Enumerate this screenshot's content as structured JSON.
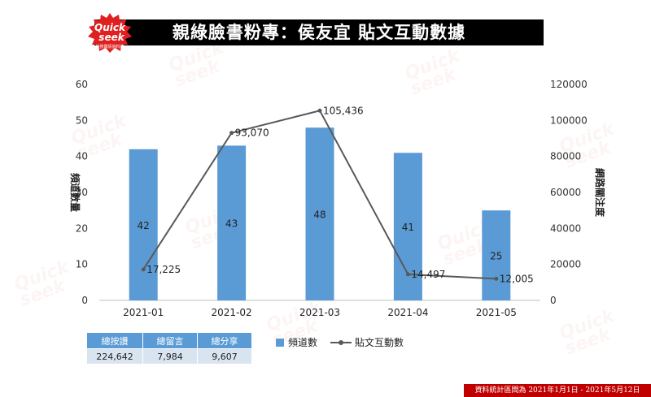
{
  "logo": {
    "line1": "Quick",
    "line2": "seek",
    "tagline": "快搜輿情資料庫"
  },
  "title": "親綠臉書粉專：侯友宜 貼文互動數據",
  "stats_table": {
    "headers": [
      "總按讚",
      "總留言",
      "總分享"
    ],
    "values": [
      "224,642",
      "7,984",
      "9,607"
    ]
  },
  "legend": {
    "bar": "頻道數",
    "line": "貼文互動數"
  },
  "footer": "資料統計區間為 2021年1月1日 - 2021年5月12日",
  "colors": {
    "bar": "#5b9bd5",
    "line": "#595959",
    "title_bg": "#000000",
    "footer_bg": "#c00000",
    "logo": "#e02020"
  },
  "chart_data": {
    "type": "bar",
    "categories": [
      "2021-01",
      "2021-02",
      "2021-03",
      "2021-04",
      "2021-05"
    ],
    "series": [
      {
        "name": "頻道數",
        "type": "bar",
        "axis": "left",
        "values": [
          42,
          43,
          48,
          41,
          25
        ],
        "labels": [
          "42",
          "43",
          "48",
          "41",
          "25"
        ]
      },
      {
        "name": "貼文互動數",
        "type": "line",
        "axis": "right",
        "values": [
          17225,
          93070,
          105436,
          14497,
          12005
        ],
        "labels": [
          "17,225",
          "93,070",
          "105,436",
          "14,497",
          "12,005"
        ]
      }
    ],
    "ylabel": "頻道數量",
    "y2label": "網路關注度",
    "ylim": [
      0,
      60
    ],
    "y2lim": [
      0,
      120000
    ],
    "yticks": [
      "0",
      "10",
      "20",
      "30",
      "40",
      "50",
      "60"
    ],
    "y2ticks": [
      "0",
      "20000",
      "40000",
      "60000",
      "80000",
      "100000",
      "120000"
    ],
    "grid": false
  }
}
